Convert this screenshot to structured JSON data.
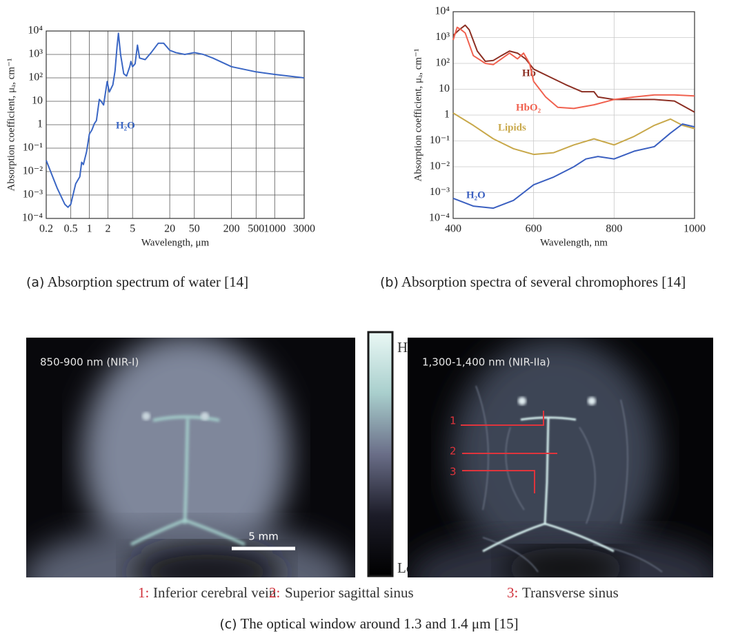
{
  "chart_data": [
    {
      "type": "line",
      "x_label": "Wavelength, μm",
      "y_label": "Absorption coefficient, μₐ, cm⁻¹",
      "x_scale": "log",
      "y_scale": "log",
      "grid": true,
      "xlim": [
        0.2,
        3000
      ],
      "ylim": [
        0.0001,
        10000
      ],
      "xticks": [
        0.2,
        0.5,
        1,
        2,
        5,
        20,
        50,
        200,
        500,
        1000,
        3000
      ],
      "yticks": [
        {
          "value": 0.0001,
          "label": "10⁻⁴"
        },
        {
          "value": 0.001,
          "label": "10⁻³"
        },
        {
          "value": 0.01,
          "label": "10⁻²"
        },
        {
          "value": 0.1,
          "label": "10⁻¹"
        },
        1,
        10,
        {
          "value": 100,
          "label": "10²"
        },
        {
          "value": 1000,
          "label": "10³"
        },
        {
          "value": 10000,
          "label": "10⁴"
        }
      ],
      "series": [
        {
          "name": "H₂O",
          "color": "#3a66c4",
          "x": [
            0.2,
            0.3,
            0.4,
            0.45,
            0.5,
            0.6,
            0.7,
            0.75,
            0.8,
            0.9,
            1.0,
            1.1,
            1.2,
            1.3,
            1.45,
            1.55,
            1.7,
            1.94,
            2.1,
            2.4,
            2.6,
            2.8,
            2.95,
            3.2,
            3.6,
            4.0,
            4.5,
            4.7,
            5.0,
            5.5,
            6.0,
            6.5,
            8,
            10,
            13,
            16,
            20,
            25,
            35,
            50,
            70,
            100,
            200,
            500,
            1000,
            3000
          ],
          "values": [
            0.03,
            0.002,
            0.0004,
            0.0003,
            0.0004,
            0.003,
            0.006,
            0.025,
            0.02,
            0.07,
            0.4,
            0.6,
            1.1,
            1.5,
            12,
            10,
            7,
            70,
            25,
            50,
            200,
            2000,
            8000,
            1000,
            150,
            120,
            300,
            500,
            300,
            400,
            2500,
            700,
            600,
            1200,
            3000,
            3000,
            1500,
            1200,
            1000,
            1200,
            1000,
            700,
            300,
            180,
            140,
            100
          ]
        }
      ]
    },
    {
      "type": "line",
      "x_label": "Wavelength, nm",
      "y_label": "Absorption coefficient, μₐ, cm⁻¹",
      "x_scale": "linear",
      "y_scale": "log",
      "grid": true,
      "xlim": [
        400,
        1000
      ],
      "ylim": [
        0.0001,
        10000
      ],
      "xticks": [
        400,
        600,
        800,
        1000
      ],
      "yticks": [
        {
          "value": 0.0001,
          "label": "10⁻⁴"
        },
        {
          "value": 0.001,
          "label": "10⁻³"
        },
        {
          "value": 0.01,
          "label": "10⁻²"
        },
        {
          "value": 0.1,
          "label": "10⁻¹"
        },
        1,
        10,
        {
          "value": 100,
          "label": "10²"
        },
        {
          "value": 1000,
          "label": "10³"
        },
        {
          "value": 10000,
          "label": "10⁴"
        }
      ],
      "series": [
        {
          "name": "Hb",
          "color": "#8b2e22",
          "x": [
            400,
            415,
            430,
            440,
            460,
            480,
            500,
            520,
            540,
            560,
            580,
            600,
            640,
            680,
            720,
            750,
            760,
            800,
            850,
            900,
            950,
            1000
          ],
          "values": [
            1200,
            2000,
            3000,
            2000,
            300,
            120,
            130,
            200,
            300,
            250,
            150,
            60,
            30,
            15,
            8,
            8,
            5,
            4,
            4,
            4,
            3.5,
            1.3
          ]
        },
        {
          "name": "HbO₂",
          "color": "#f0604e",
          "x": [
            400,
            410,
            420,
            430,
            450,
            480,
            500,
            520,
            540,
            560,
            575,
            590,
            600,
            630,
            660,
            700,
            750,
            800,
            850,
            900,
            950,
            1000
          ],
          "values": [
            800,
            2500,
            2000,
            1500,
            200,
            100,
            90,
            150,
            250,
            150,
            250,
            100,
            20,
            5,
            2,
            1.8,
            2.5,
            4,
            5,
            6,
            6,
            5.5
          ]
        },
        {
          "name": "Lipids",
          "color": "#c8a84a",
          "x": [
            400,
            450,
            500,
            550,
            600,
            650,
            700,
            750,
            800,
            850,
            900,
            940,
            970,
            1000
          ],
          "values": [
            1.2,
            0.4,
            0.12,
            0.05,
            0.03,
            0.035,
            0.07,
            0.12,
            0.07,
            0.15,
            0.4,
            0.7,
            0.4,
            0.3
          ]
        },
        {
          "name": "H₂O",
          "color": "#3a5fc0",
          "x": [
            400,
            450,
            500,
            550,
            600,
            650,
            700,
            730,
            760,
            800,
            850,
            900,
            940,
            970,
            1000
          ],
          "values": [
            0.0006,
            0.0003,
            0.00025,
            0.0005,
            0.002,
            0.004,
            0.01,
            0.02,
            0.025,
            0.02,
            0.04,
            0.06,
            0.2,
            0.45,
            0.35
          ]
        }
      ]
    }
  ],
  "captions": {
    "a": {
      "label": "(a)",
      "text": "Absorption spectrum of water [14]"
    },
    "b": {
      "label": "(b)",
      "text": "Absorption spectra of several chromophores [14]"
    },
    "c": {
      "label": "(c)",
      "text": "The optical window around 1.3 and 1.4 μm [15]"
    }
  },
  "panel_c": {
    "images": [
      {
        "label": "850-900 nm (NIR-I)",
        "scale_bar": "5 mm"
      },
      {
        "label": "1,300-1,400 nm (NIR-IIa)",
        "markers": [
          "1",
          "2",
          "3"
        ]
      }
    ],
    "colorbar": {
      "high": "High",
      "low": "Low"
    },
    "legend": [
      {
        "key": "1:",
        "text": "Inferior cerebral vein"
      },
      {
        "key": "2:",
        "text": "Superior sagittal sinus"
      },
      {
        "key": "3:",
        "text": "Transverse sinus"
      }
    ]
  }
}
